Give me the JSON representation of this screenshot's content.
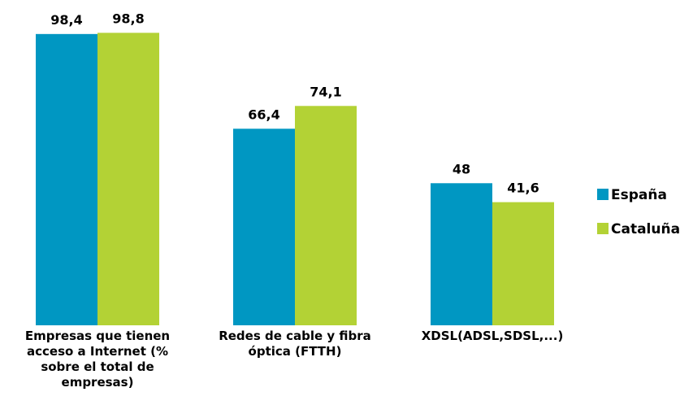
{
  "chart_data": {
    "type": "bar",
    "categories": [
      "Empresas que tienen acceso a Internet (% sobre el total de empresas)",
      "Redes de cable y fibra óptica (FTTH)",
      "XDSL(ADSL,SDSL,...)"
    ],
    "series": [
      {
        "name": "España",
        "color": "#0097c2",
        "values": [
          98.4,
          66.4,
          48
        ],
        "value_labels": [
          "98,4",
          "66,4",
          "48"
        ]
      },
      {
        "name": "Cataluña",
        "color": "#b3d235",
        "values": [
          98.8,
          74.1,
          41.6
        ],
        "value_labels": [
          "98,8",
          "74,1",
          "41,6"
        ]
      }
    ],
    "ylim": [
      0,
      100
    ],
    "legend": "right"
  }
}
